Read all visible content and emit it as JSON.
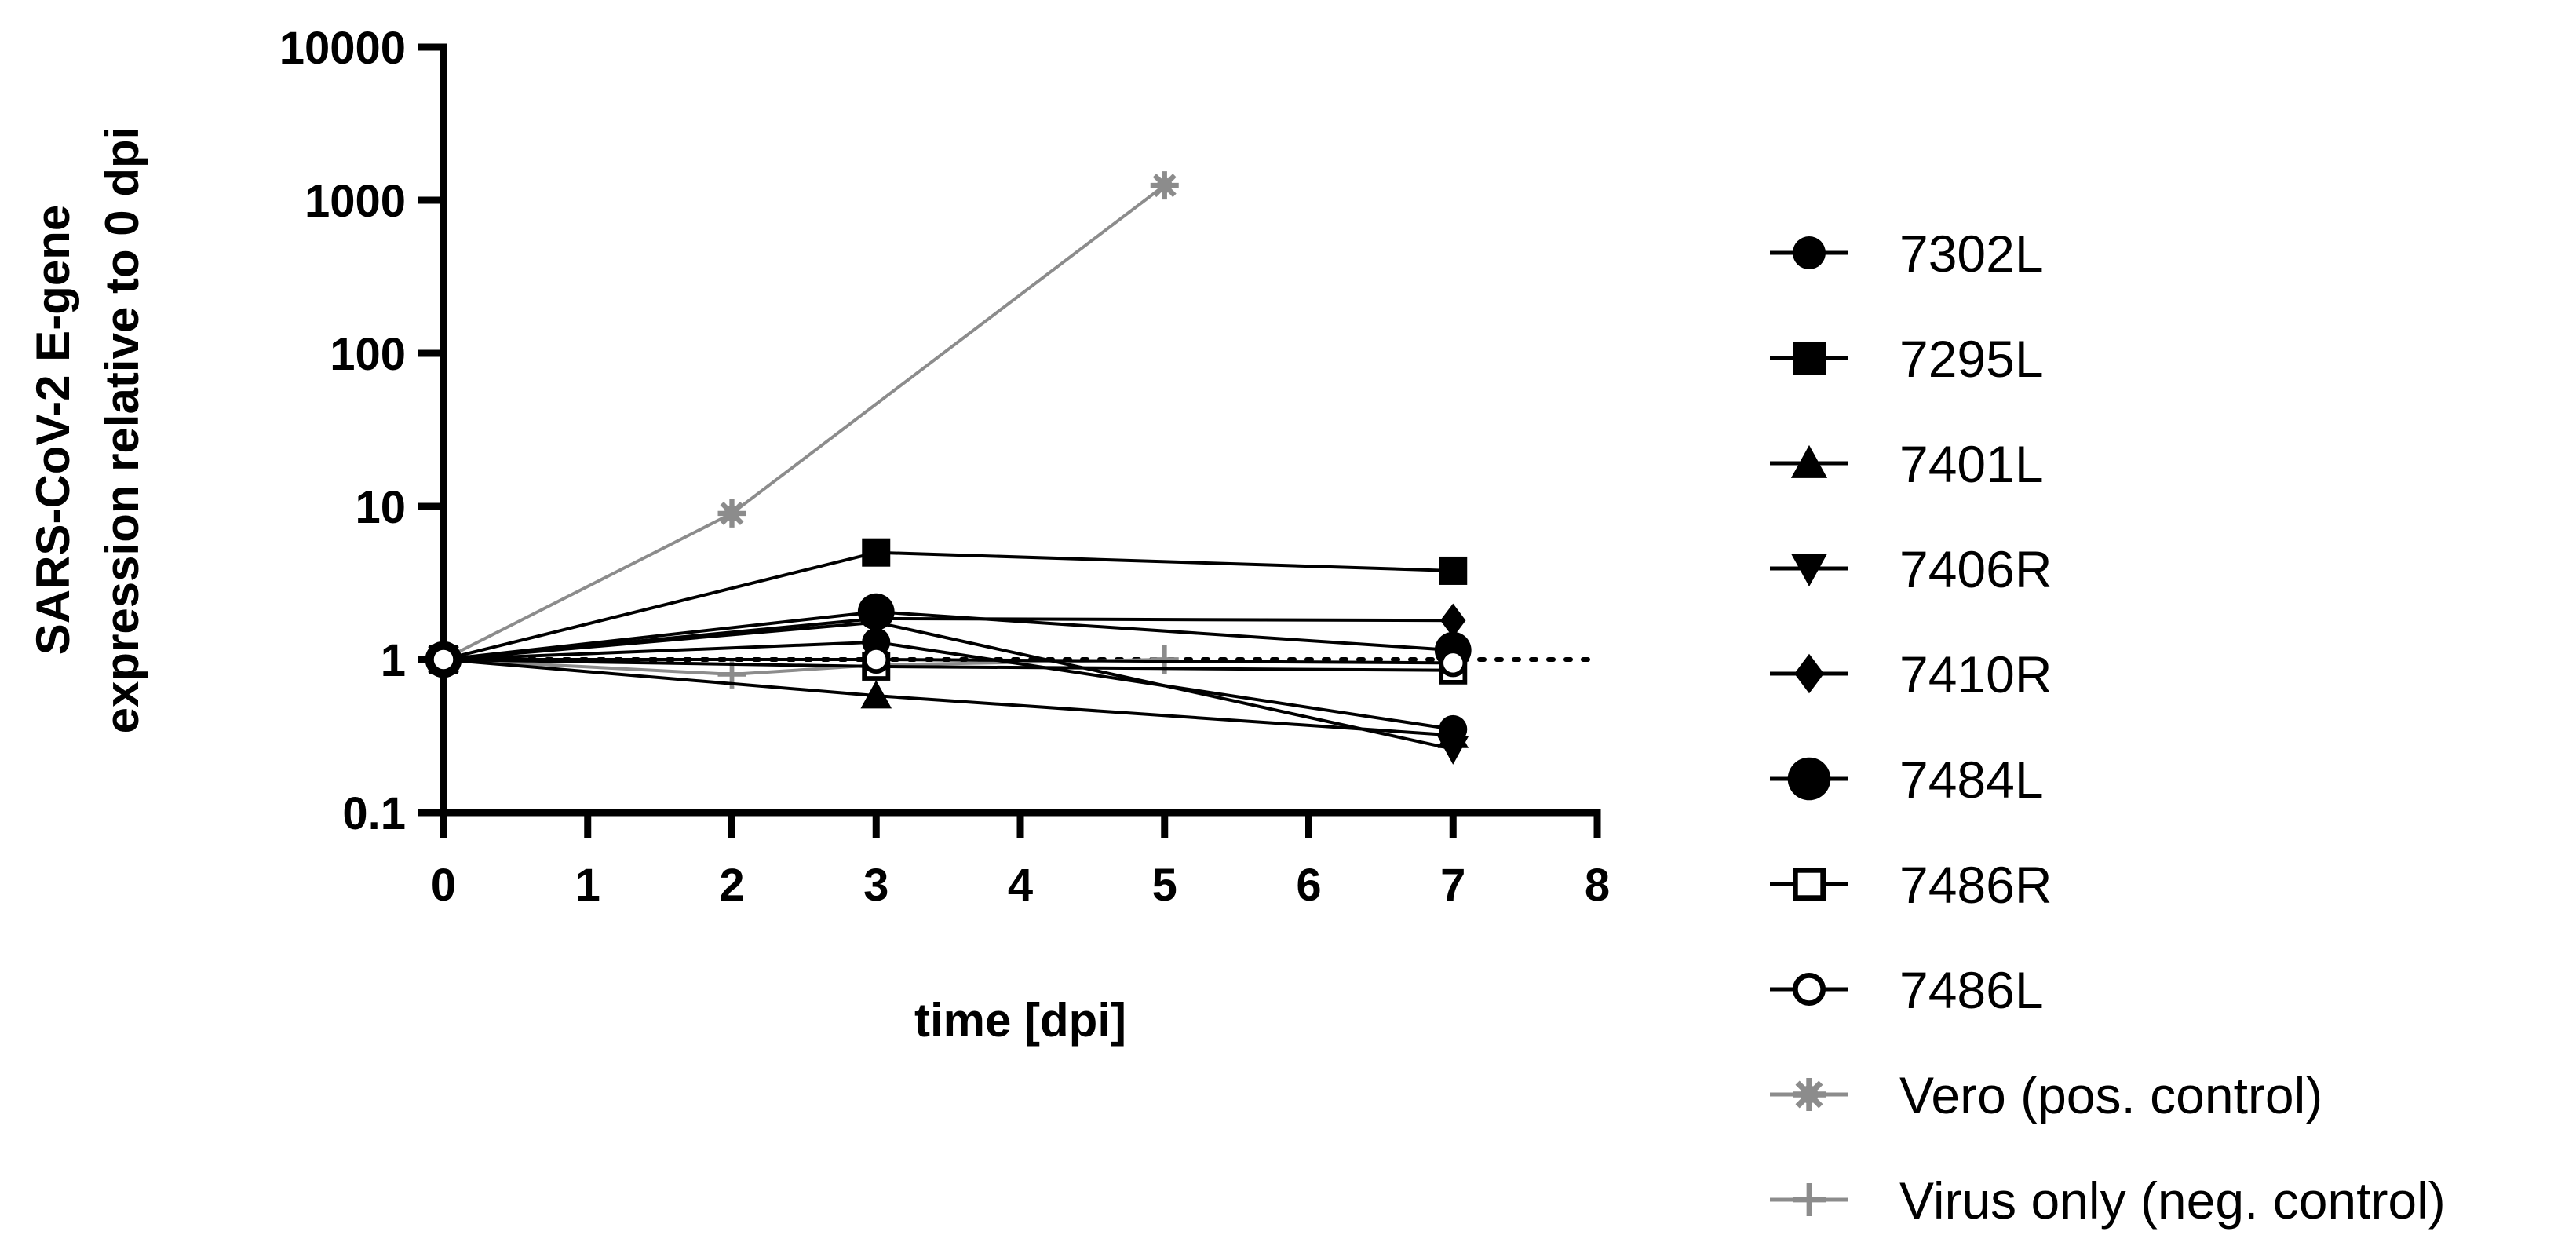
{
  "chart_data": {
    "type": "line",
    "title": "",
    "xlabel": "time [dpi]",
    "ylabel": [
      "SARS-CoV-2 E-gene",
      "expression relative to 0 dpi"
    ],
    "yscale": "log",
    "xlim": [
      0,
      8
    ],
    "ylim": [
      0.1,
      10000
    ],
    "x_ticks": [
      "0",
      "1",
      "2",
      "3",
      "4",
      "5",
      "6",
      "7",
      "8"
    ],
    "y_ticks": [
      "0.1",
      "1",
      "10",
      "100",
      "1000",
      "10000"
    ],
    "y_tick_values": [
      0.1,
      1,
      10,
      100,
      1000,
      10000
    ],
    "reference_line": {
      "y": 1,
      "style": "dotted"
    },
    "grid": false,
    "legend_position": "right",
    "series": [
      {
        "name": "7302L",
        "marker": "circle-filled",
        "color": "#000000",
        "x": [
          0,
          3,
          7
        ],
        "y": [
          1,
          1.3,
          0.35
        ]
      },
      {
        "name": "7295L",
        "marker": "square-filled",
        "color": "#000000",
        "x": [
          0,
          3,
          7
        ],
        "y": [
          1,
          5.0,
          3.8
        ]
      },
      {
        "name": "7401L",
        "marker": "triangle-up",
        "color": "#000000",
        "x": [
          0,
          3,
          7
        ],
        "y": [
          1,
          0.58,
          0.32
        ]
      },
      {
        "name": "7406R",
        "marker": "triangle-down",
        "color": "#000000",
        "x": [
          0,
          3,
          7
        ],
        "y": [
          1,
          1.75,
          0.26
        ]
      },
      {
        "name": "7410R",
        "marker": "diamond",
        "color": "#000000",
        "x": [
          0,
          3,
          7
        ],
        "y": [
          1,
          1.85,
          1.8
        ]
      },
      {
        "name": "7484L",
        "marker": "circle-large",
        "color": "#000000",
        "x": [
          0,
          3,
          7
        ],
        "y": [
          1,
          2.05,
          1.15
        ]
      },
      {
        "name": "7486R",
        "marker": "square-open",
        "color": "#000000",
        "x": [
          0,
          3,
          7
        ],
        "y": [
          1,
          0.9,
          0.85
        ]
      },
      {
        "name": "7486L",
        "marker": "circle-open",
        "color": "#000000",
        "x": [
          0,
          3,
          7
        ],
        "y": [
          1,
          1.0,
          0.95
        ]
      },
      {
        "name": "Vero (pos. control)",
        "marker": "asterisk",
        "color": "#8c8c8c",
        "x": [
          0,
          2,
          5
        ],
        "y": [
          1,
          9.0,
          1250
        ]
      },
      {
        "name": "Virus only (neg. control)",
        "marker": "plus",
        "color": "#8c8c8c",
        "x": [
          0,
          2,
          3,
          5
        ],
        "y": [
          1,
          0.8,
          0.92,
          1.0
        ]
      }
    ]
  }
}
